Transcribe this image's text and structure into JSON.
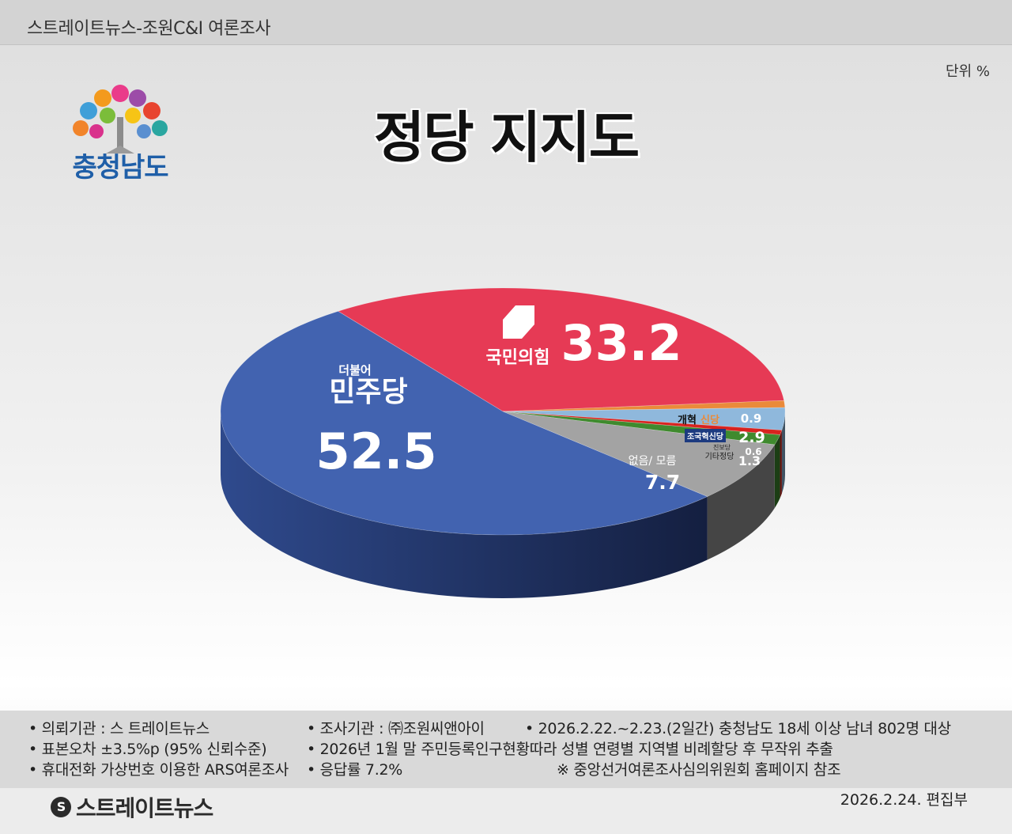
{
  "header": {
    "title": "스트레이트뉴스-조원C&I 여론조사"
  },
  "unit": "단위 %",
  "logo": {
    "text": "충청남도"
  },
  "chart_title": "정당 지지도",
  "chart_data": {
    "type": "pie",
    "title": "정당 지지도",
    "unit": "%",
    "slices": [
      {
        "label": "국민의힘",
        "value": 33.2,
        "color": "#e63a55"
      },
      {
        "label": "개혁신당",
        "value": 0.9,
        "color": "#ea8a3a"
      },
      {
        "label": "조국혁신당",
        "value": 2.9,
        "color": "#8fb8dc"
      },
      {
        "label": "진보당",
        "value": 0.6,
        "color": "#d8231f"
      },
      {
        "label": "기타정당",
        "value": 1.3,
        "color": "#3f8a2e"
      },
      {
        "label": "없음/ 모름",
        "value": 7.7,
        "color": "#a3a3a3"
      },
      {
        "label": "민주당",
        "value": 52.5,
        "color": "#4263b0"
      }
    ]
  },
  "labels": {
    "ppp": {
      "name": "국민의힘",
      "value": "33.2"
    },
    "dem": {
      "small": "더불어",
      "name": "민주당",
      "value": "52.5"
    },
    "reform": {
      "name_a": "개혁",
      "name_b": "신당",
      "value": "0.9"
    },
    "rebuild": {
      "name": "조국혁신당",
      "value": "2.9"
    },
    "progressive": {
      "name": "진보당",
      "value": "0.6"
    },
    "other": {
      "name": "기타정당",
      "value": "1.3"
    },
    "none": {
      "name": "없음/ 모름",
      "value": "7.7"
    }
  },
  "footer": {
    "r1c1": "• 의뢰기관 : 스 트레이트뉴스",
    "r1c2": "• 조사기관 : ㈜조원씨앤아이",
    "r1c3": "• 2026.2.22.~2.23.(2일간) 충청남도 18세 이상 남녀 802명 대상",
    "r2c1": "• 표본오차 ±3.5%p (95% 신뢰수준)",
    "r2c2": "• 2026년 1월 말 주민등록인구현황따라 성별 연령별 지역별 비례할당 후 무작위 추출",
    "r3c1": "• 휴대전화 가상번호 이용한 ARS여론조사",
    "r3c2": "• 응답률 7.2%",
    "r3c3": "※ 중앙선거여론조사심의위원회 홈페이지 참조"
  },
  "brand": {
    "icon": "S",
    "name": "스트레이트뉴스"
  },
  "date_editor": "2026.2.24.  편집부"
}
